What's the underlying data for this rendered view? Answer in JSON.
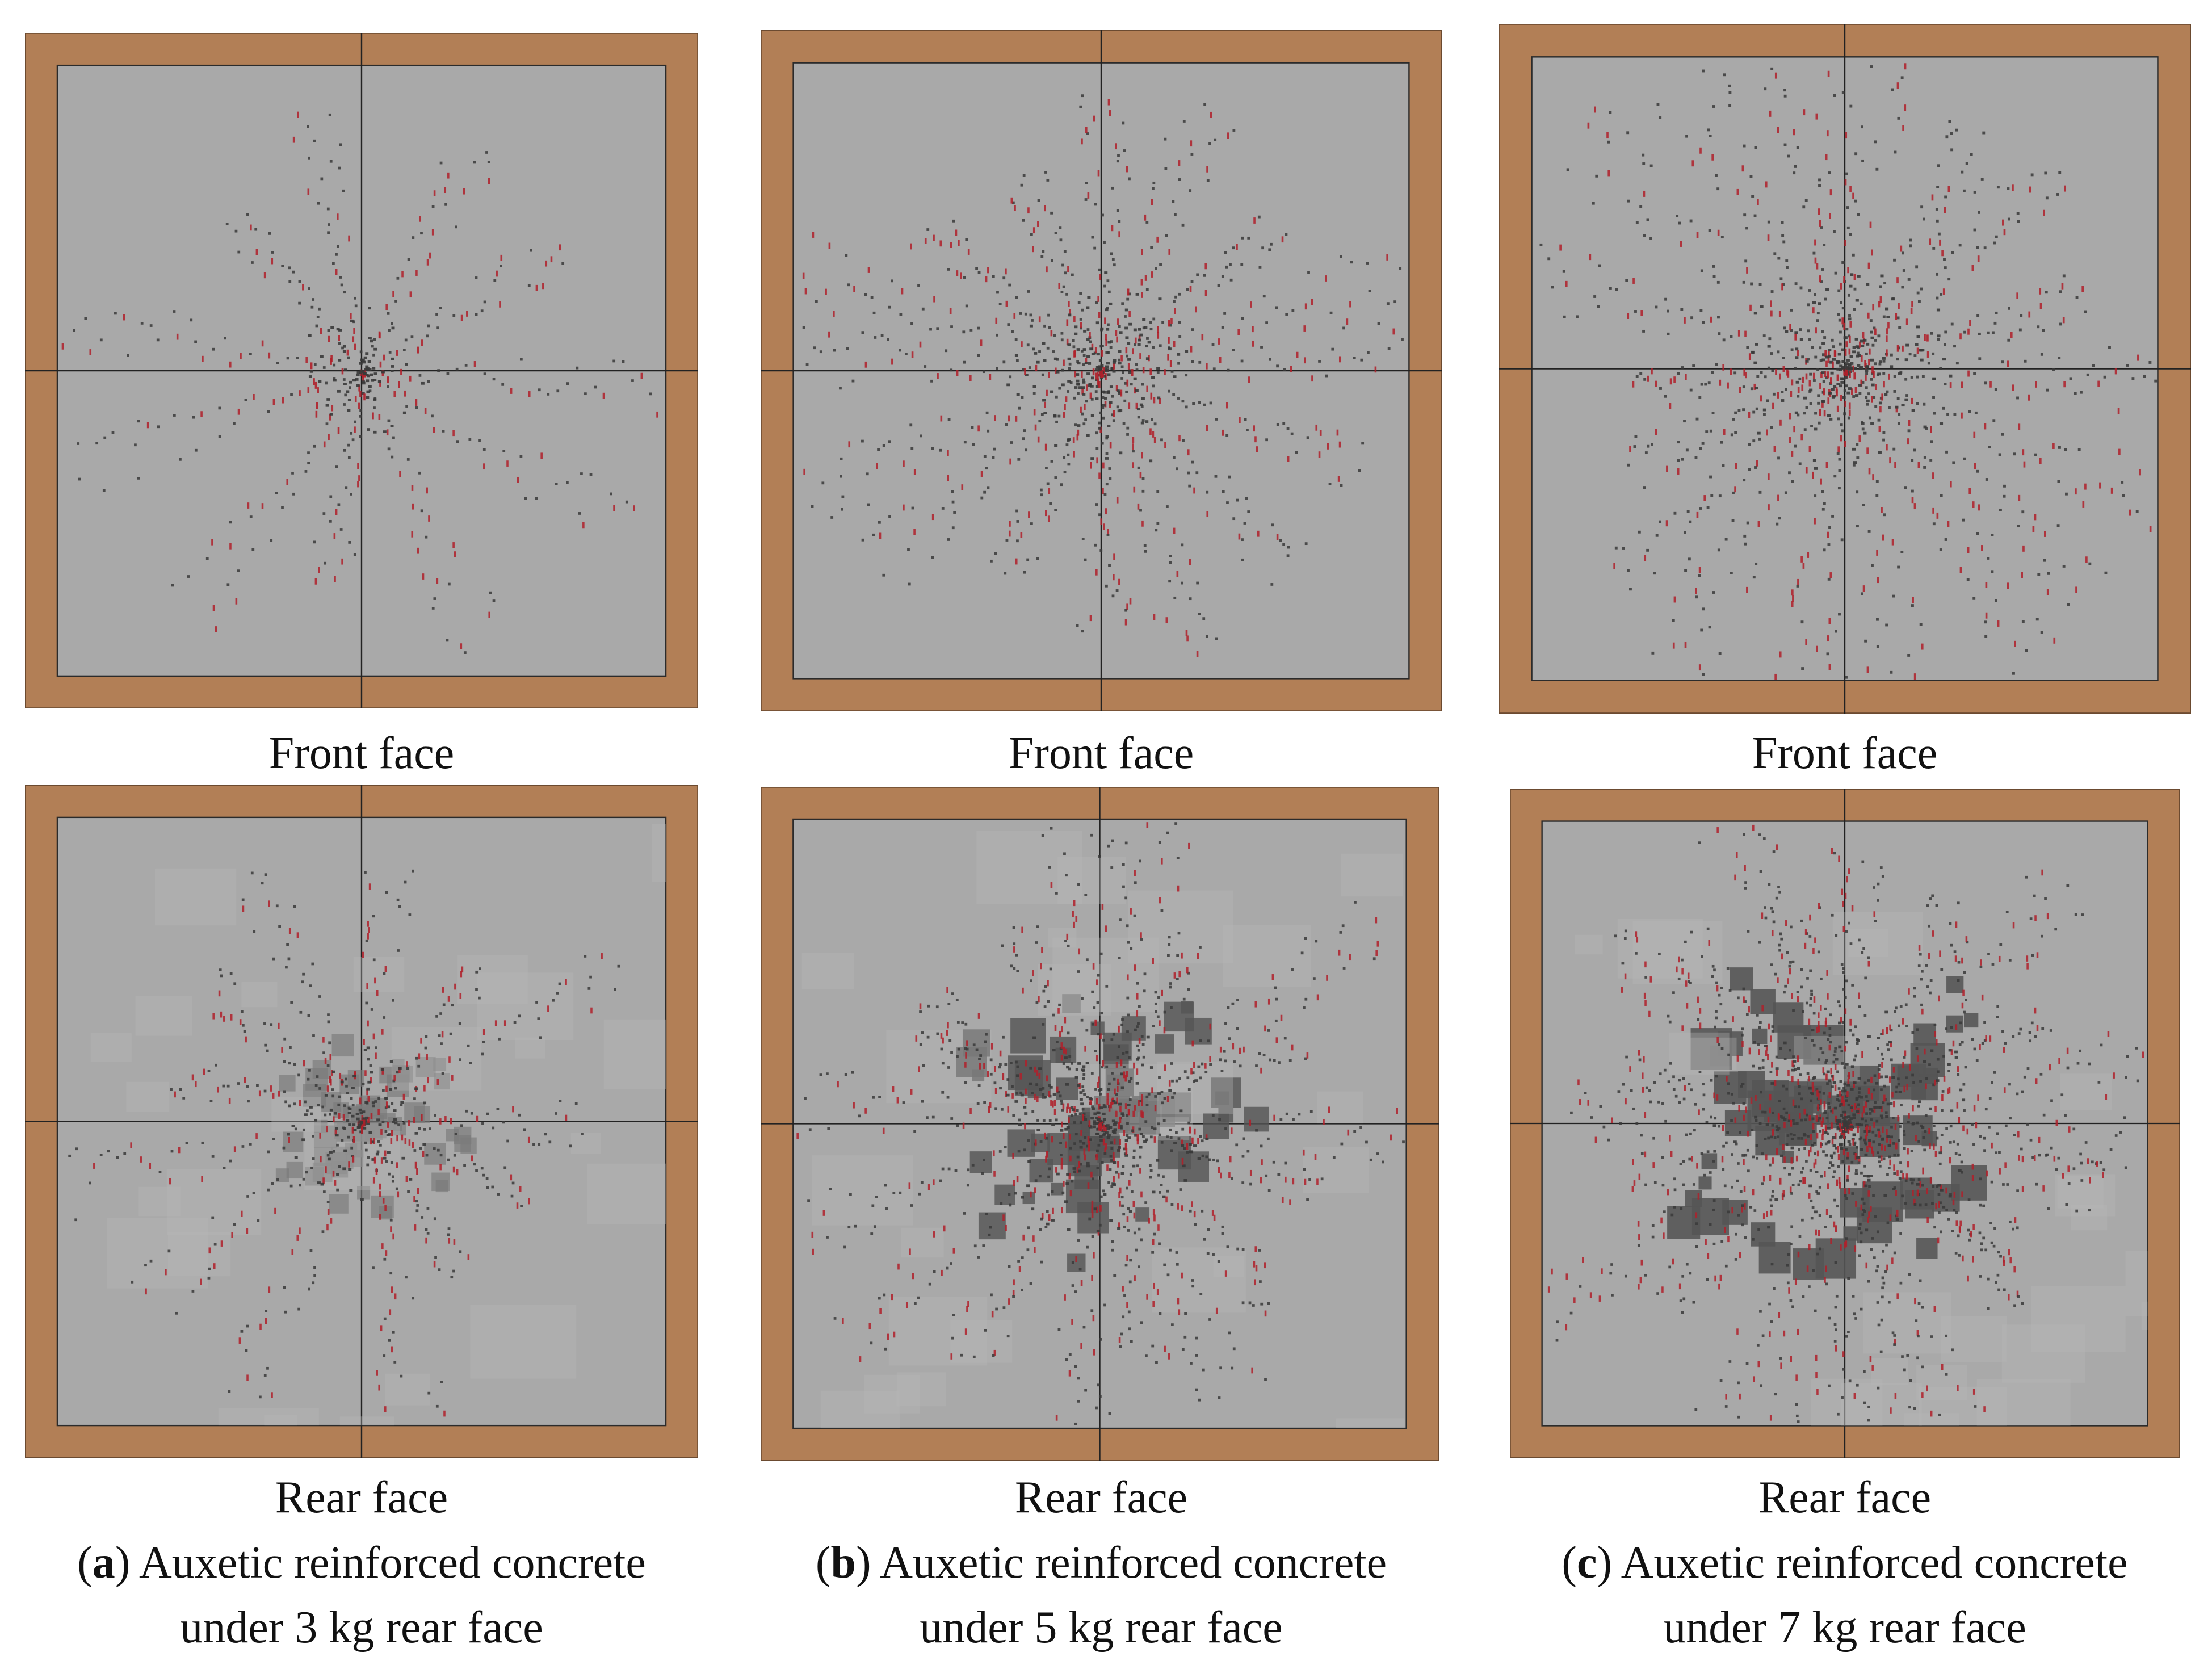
{
  "figure": {
    "panels": [
      {
        "id": "a",
        "front_label": "Front face",
        "rear_label": "Rear face",
        "caption_line1": "Auxetic reinforced concrete",
        "caption_line2": "under 3 kg rear face",
        "damage_level": 0.3
      },
      {
        "id": "b",
        "front_label": "Front face",
        "rear_label": "Rear face",
        "caption_line1": "Auxetic reinforced concrete",
        "caption_line2": "under 5 kg rear face",
        "damage_level": 0.65
      },
      {
        "id": "c",
        "front_label": "Front face",
        "rear_label": "Rear face",
        "caption_line1": "Auxetic reinforced concrete",
        "caption_line2": "under 7 kg rear face",
        "damage_level": 0.85
      }
    ],
    "colors": {
      "frame": "#B27F56",
      "concrete": "#A9A9A9",
      "concrete_dark": "#555555",
      "crack": "#3A3A3A",
      "rebar_damage": "#B0202A"
    }
  }
}
